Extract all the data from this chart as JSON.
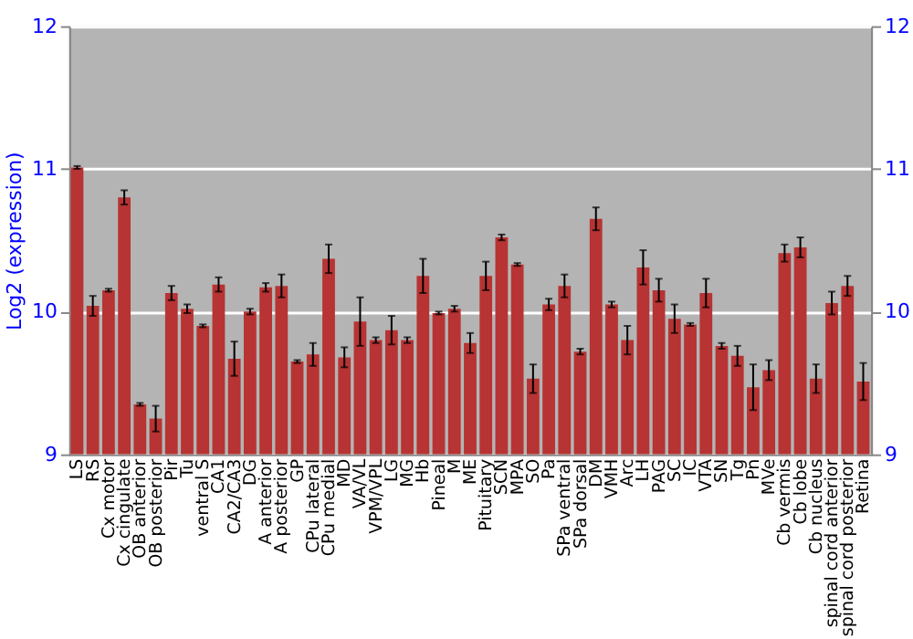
{
  "chart_data": {
    "type": "bar",
    "ylabel": "Log2 (expression)",
    "categories": [
      "LS",
      "RS",
      "Cx motor",
      "Cx cingulate",
      "OB anterior",
      "OB posterior",
      "Pir",
      "Tu",
      "ventral S",
      "CA1",
      "CA2/CA3",
      "DG",
      "A anterior",
      "A posterior",
      "GP",
      "CPu lateral",
      "CPu medial",
      "MD",
      "VA/VL",
      "VPM/VPL",
      "LG",
      "MG",
      "Hb",
      "Pineal",
      "M",
      "ME",
      "Pituitary",
      "SCN",
      "MPA",
      "SO",
      "Pa",
      "SPa ventral",
      "SPa dorsal",
      "DM",
      "VMH",
      "Arc",
      "LH",
      "PAG",
      "SC",
      "IC",
      "VTA",
      "SN",
      "Tg",
      "Pn",
      "MVe",
      "Cb vermis",
      "Cb lobe",
      "Cb nucleus",
      "spinal cord anterior",
      "spinal cord posterior",
      "Retina"
    ],
    "values": [
      11.01,
      10.04,
      10.15,
      10.8,
      9.35,
      9.25,
      10.13,
      10.02,
      9.9,
      10.19,
      9.67,
      10.0,
      10.17,
      10.18,
      9.65,
      9.7,
      10.37,
      9.68,
      9.93,
      9.8,
      9.87,
      9.8,
      10.25,
      9.99,
      10.02,
      9.78,
      10.25,
      10.52,
      10.33,
      9.53,
      10.05,
      10.18,
      9.72,
      10.65,
      10.05,
      9.8,
      10.31,
      10.15,
      9.95,
      9.91,
      10.13,
      9.76,
      9.69,
      9.47,
      9.59,
      10.41,
      10.45,
      9.53,
      10.06,
      10.18,
      9.51
    ],
    "errors": [
      0.01,
      0.07,
      0.01,
      0.05,
      0.01,
      0.09,
      0.05,
      0.03,
      0.01,
      0.05,
      0.12,
      0.02,
      0.03,
      0.08,
      0.01,
      0.08,
      0.1,
      0.07,
      0.17,
      0.02,
      0.1,
      0.02,
      0.12,
      0.01,
      0.02,
      0.07,
      0.1,
      0.02,
      0.01,
      0.1,
      0.04,
      0.08,
      0.02,
      0.08,
      0.02,
      0.1,
      0.12,
      0.08,
      0.1,
      0.01,
      0.1,
      0.02,
      0.07,
      0.16,
      0.07,
      0.06,
      0.07,
      0.1,
      0.08,
      0.07,
      0.13
    ],
    "color": "#b83333",
    "ylim": [
      9,
      12
    ],
    "yticks": [
      9,
      10,
      11,
      12
    ],
    "y2lim": [
      9,
      12
    ],
    "y2ticks": [
      9,
      10,
      11,
      12
    ],
    "grid": "y"
  }
}
